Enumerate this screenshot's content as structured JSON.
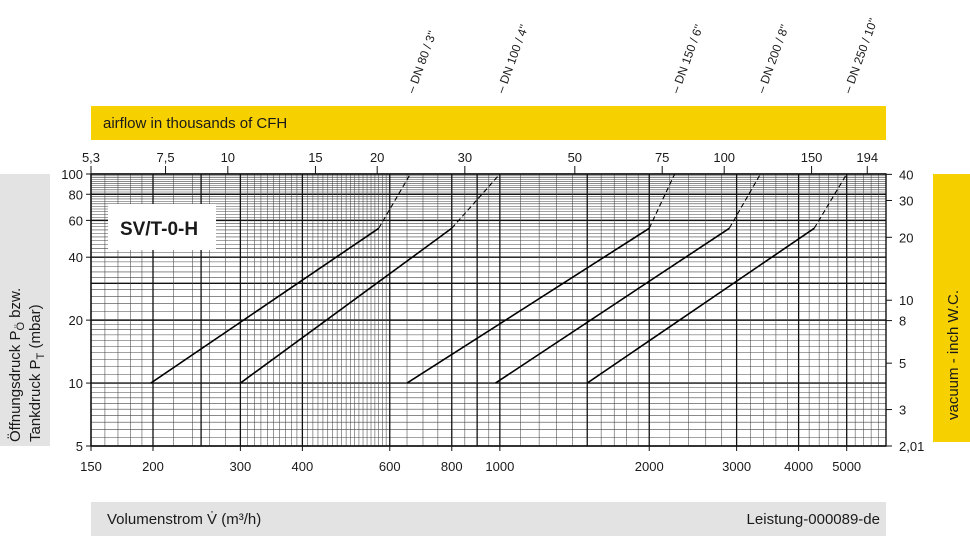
{
  "chart_data": {
    "type": "line",
    "title": "SV/T-0-H",
    "xlabel": "Volumenstrom V̇ (m³/h)",
    "ylabel_line1": "Öffnungsdruck P",
    "ylabel_line1_sub": "Ö",
    "ylabel_line1_tail": " bzw.",
    "ylabel_line2": "Tankdruck P",
    "ylabel_line2_sub": "T",
    "ylabel_line2_tail": " (mbar)",
    "top_axis_label": "airflow in thousands of CFH",
    "right_axis_label": "vacuum  - inch W.C.",
    "reference": "Leistung-000089-de",
    "xscale": "log",
    "yscale": "log",
    "xlim": [
      150,
      6000
    ],
    "ylim": [
      5,
      100
    ],
    "x_ticks": [
      150,
      200,
      300,
      400,
      600,
      800,
      1000,
      2000,
      3000,
      4000,
      5000
    ],
    "x_tick_labels": [
      "150",
      "200",
      "300",
      "400",
      "600",
      "800",
      "1000",
      "2000",
      "3000",
      "4000",
      "5000"
    ],
    "y_ticks": [
      5,
      10,
      20,
      40,
      60,
      80,
      100
    ],
    "y_tick_labels": [
      "5",
      "10",
      "20",
      "40",
      "60",
      "80",
      "100"
    ],
    "top_ticks": [
      {
        "label": "5,3",
        "m3h": 150
      },
      {
        "label": "7,5",
        "m3h": 212
      },
      {
        "label": "10",
        "m3h": 283
      },
      {
        "label": "15",
        "m3h": 425
      },
      {
        "label": "20",
        "m3h": 566
      },
      {
        "label": "30",
        "m3h": 850
      },
      {
        "label": "50",
        "m3h": 1416
      },
      {
        "label": "75",
        "m3h": 2124
      },
      {
        "label": "100",
        "m3h": 2832
      },
      {
        "label": "150",
        "m3h": 4248
      },
      {
        "label": "194",
        "m3h": 5500
      }
    ],
    "right_ticks": [
      {
        "label": "2,01",
        "mbar": 5
      },
      {
        "label": "3",
        "mbar": 7.47
      },
      {
        "label": "5",
        "mbar": 12.45
      },
      {
        "label": "8",
        "mbar": 19.9
      },
      {
        "label": "10",
        "mbar": 24.9
      },
      {
        "label": "20",
        "mbar": 49.8
      },
      {
        "label": "30",
        "mbar": 74.7
      },
      {
        "label": "40",
        "mbar": 99.6
      }
    ],
    "series": [
      {
        "name": "DN 80 / 3''",
        "solid": [
          [
            198,
            10
          ],
          [
            570,
            55
          ]
        ],
        "dashed": [
          [
            570,
            55
          ],
          [
            660,
            100
          ]
        ]
      },
      {
        "name": "DN 100 / 4''",
        "solid": [
          [
            300,
            10
          ],
          [
            800,
            55
          ]
        ],
        "dashed": [
          [
            800,
            55
          ],
          [
            1000,
            100
          ]
        ]
      },
      {
        "name": "DN 150 / 6''",
        "solid": [
          [
            650,
            10
          ],
          [
            2000,
            55
          ]
        ],
        "dashed": [
          [
            2000,
            55
          ],
          [
            2250,
            100
          ]
        ]
      },
      {
        "name": "DN 200 / 8''",
        "solid": [
          [
            980,
            10
          ],
          [
            2900,
            55
          ]
        ],
        "dashed": [
          [
            2900,
            55
          ],
          [
            3350,
            100
          ]
        ]
      },
      {
        "name": "DN 250 / 10''",
        "solid": [
          [
            1500,
            10
          ],
          [
            4300,
            55
          ]
        ],
        "dashed": [
          [
            4300,
            55
          ],
          [
            5000,
            100
          ]
        ]
      }
    ],
    "grid": true,
    "legend": "none"
  }
}
